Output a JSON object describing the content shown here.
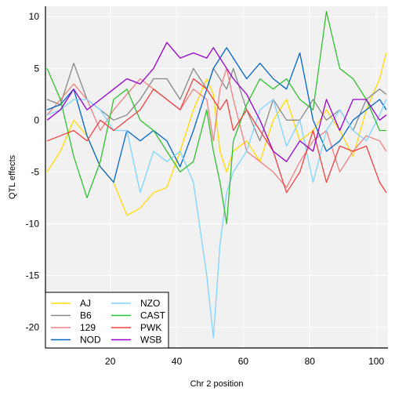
{
  "chart_data": {
    "type": "line",
    "title": "",
    "xlabel": "Chr 2 position",
    "ylabel": "QTL effects",
    "xlim": [
      0.5,
      103.5
    ],
    "ylim": [
      -22,
      11
    ],
    "xticks": [
      20,
      40,
      60,
      80,
      100
    ],
    "yticks": [
      -20,
      -15,
      -10,
      -5,
      0,
      5,
      10
    ],
    "grid": true,
    "legend_position": "bottom-left",
    "x": [
      1,
      5,
      9,
      13,
      17,
      21,
      25,
      29,
      33,
      37,
      41,
      45,
      49,
      51,
      53,
      55,
      57,
      61,
      65,
      69,
      73,
      77,
      81,
      85,
      89,
      93,
      97,
      101,
      103
    ],
    "series": [
      {
        "name": "AJ",
        "color": "#FFDB00",
        "values": [
          -5,
          -3,
          0,
          -1.5,
          -4.5,
          -6,
          -9.2,
          -8.5,
          -7,
          -6.5,
          -3,
          1,
          4,
          2.5,
          -3,
          -5,
          -3,
          -2,
          -4,
          0,
          2,
          -2,
          -1,
          1,
          -1,
          -3.5,
          1,
          4,
          6.5
        ]
      },
      {
        "name": "B6",
        "color": "#888888",
        "values": [
          2,
          1.5,
          5.5,
          2,
          1,
          0,
          0.5,
          2,
          4,
          4,
          2,
          5,
          3,
          5,
          4,
          3,
          5,
          1,
          -2,
          2,
          0,
          0,
          2,
          0,
          1,
          -1,
          2,
          3,
          2.5
        ]
      },
      {
        "name": "129",
        "color": "#F08080",
        "values": [
          0.5,
          2,
          3.5,
          2,
          -1,
          1,
          2.5,
          4,
          3,
          2,
          1,
          3,
          2,
          -2,
          3,
          5,
          2,
          -3,
          -4,
          -5,
          -6.5,
          -4,
          -2,
          -1,
          -5,
          -3,
          -1.5,
          -2,
          -3
        ]
      },
      {
        "name": "NOD",
        "color": "#0064C9",
        "values": [
          1,
          1.5,
          3,
          -1.5,
          -4.5,
          -6,
          -1,
          -2,
          -1,
          -2,
          -4.5,
          -1,
          3,
          5,
          6,
          7,
          6,
          4,
          5.5,
          4,
          3,
          6.5,
          0,
          -3,
          -2,
          0,
          1,
          2,
          1
        ]
      },
      {
        "name": "NZO",
        "color": "#7FD4FF",
        "values": [
          0.5,
          1,
          2,
          2,
          1,
          -1,
          -1,
          -7,
          -3,
          -4,
          -3,
          -6,
          -15,
          -21,
          -12,
          -7,
          -5,
          -3,
          1,
          2,
          -2.5,
          0,
          -6,
          -1,
          1,
          -1,
          -2,
          0.5,
          2
        ]
      },
      {
        "name": "CAST",
        "color": "#30C030",
        "values": [
          5,
          2,
          -3.5,
          -7.5,
          -4,
          2,
          3,
          0,
          -1,
          -3,
          -5,
          -4,
          1,
          -3,
          -6,
          -10,
          -2,
          1.5,
          4,
          3,
          4,
          2,
          1,
          10.5,
          5,
          4,
          2,
          -1,
          -1
        ]
      },
      {
        "name": "PWK",
        "color": "#F04040",
        "values": [
          -2,
          -1.5,
          -1,
          -2,
          0,
          -1,
          0,
          1,
          3,
          2,
          1,
          4,
          3,
          2,
          1,
          2,
          -1,
          1,
          -1,
          -3,
          -7,
          -5,
          -1,
          -6,
          -2.5,
          -3,
          -2.5,
          -6,
          -7
        ]
      },
      {
        "name": "WSB",
        "color": "#9900CC",
        "values": [
          0,
          1,
          3,
          1,
          2,
          3,
          4,
          3.5,
          5,
          7.5,
          6,
          6.5,
          6,
          7,
          6,
          5,
          4,
          2.5,
          0,
          -3,
          -4,
          -2,
          -3,
          2,
          -1,
          2,
          2,
          0,
          0.5
        ]
      }
    ]
  }
}
